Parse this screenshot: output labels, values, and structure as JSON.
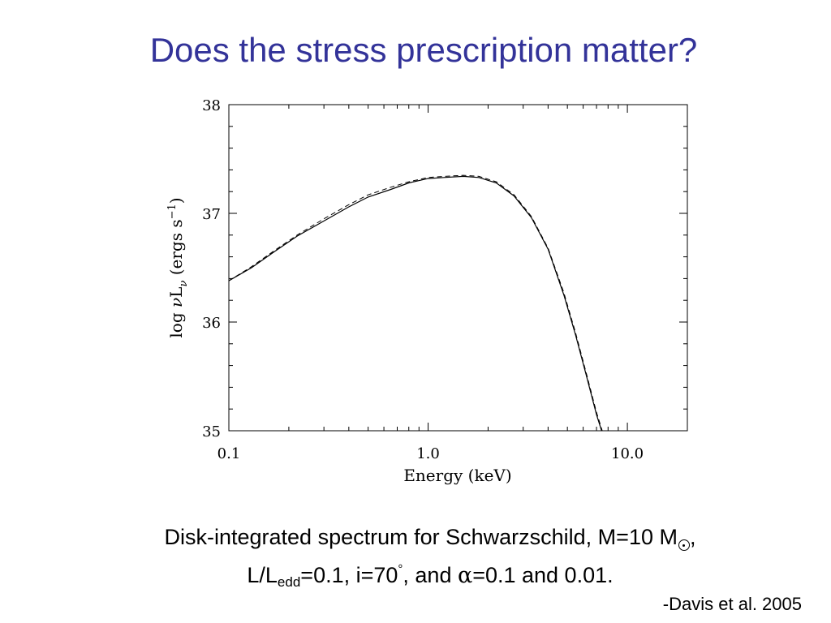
{
  "slide": {
    "title": "Does the stress prescription matter?",
    "caption_line1_text": "Disk-integrated spectrum for Schwarzschild, M=10 M",
    "caption_line1_end": ",",
    "caption_line2_a": "L/L",
    "caption_line2_sub": "edd",
    "caption_line2_b": "=0.1, i=70",
    "caption_line2_deg": "°",
    "caption_line2_c": ", and ",
    "caption_line2_alpha": "α",
    "caption_line2_d": "=0.1 and 0.01.",
    "credit": "-Davis et al. 2005",
    "colors": {
      "title": "#333399",
      "text": "#000000"
    }
  },
  "chart_data": {
    "type": "line",
    "xlabel": "Energy (keV)",
    "ylabel_parts": {
      "prefix": "log ",
      "nu": "ν",
      "L": "L",
      "sub": "ν",
      "units": " (ergs s",
      "exp": "−1",
      "close": ")"
    },
    "x_scale": "log",
    "xlim": [
      0.1,
      20
    ],
    "ylim": [
      35,
      38
    ],
    "x_ticks": [
      {
        "v": 0.1,
        "label": "0.1"
      },
      {
        "v": 1.0,
        "label": "1.0"
      },
      {
        "v": 10.0,
        "label": "10.0"
      }
    ],
    "y_ticks": [
      {
        "v": 35,
        "label": "35"
      },
      {
        "v": 36,
        "label": "36"
      },
      {
        "v": 37,
        "label": "37"
      },
      {
        "v": 38,
        "label": "38"
      }
    ],
    "grid": false,
    "series": [
      {
        "style": "solid",
        "x": [
          0.1,
          0.13,
          0.17,
          0.22,
          0.3,
          0.4,
          0.5,
          0.65,
          0.8,
          1.0,
          1.2,
          1.5,
          1.8,
          2.2,
          2.7,
          3.3,
          4.0,
          4.8,
          5.5,
          6.2,
          7.0,
          7.6
        ],
        "y": [
          36.38,
          36.5,
          36.65,
          36.79,
          36.93,
          37.06,
          37.15,
          37.22,
          37.28,
          37.32,
          37.33,
          37.34,
          37.33,
          37.28,
          37.16,
          36.96,
          36.67,
          36.25,
          35.88,
          35.52,
          35.15,
          34.94
        ]
      },
      {
        "style": "dashed",
        "x": [
          0.1,
          0.13,
          0.17,
          0.22,
          0.3,
          0.4,
          0.5,
          0.65,
          0.8,
          1.0,
          1.2,
          1.5,
          1.8,
          2.2,
          2.7,
          3.3,
          4.0,
          4.8,
          5.5,
          6.2,
          7.0,
          7.6
        ],
        "y": [
          36.38,
          36.51,
          36.66,
          36.8,
          36.95,
          37.08,
          37.17,
          37.24,
          37.29,
          37.33,
          37.34,
          37.35,
          37.34,
          37.29,
          37.17,
          36.97,
          36.68,
          36.27,
          35.9,
          35.54,
          35.17,
          34.96
        ]
      }
    ]
  }
}
